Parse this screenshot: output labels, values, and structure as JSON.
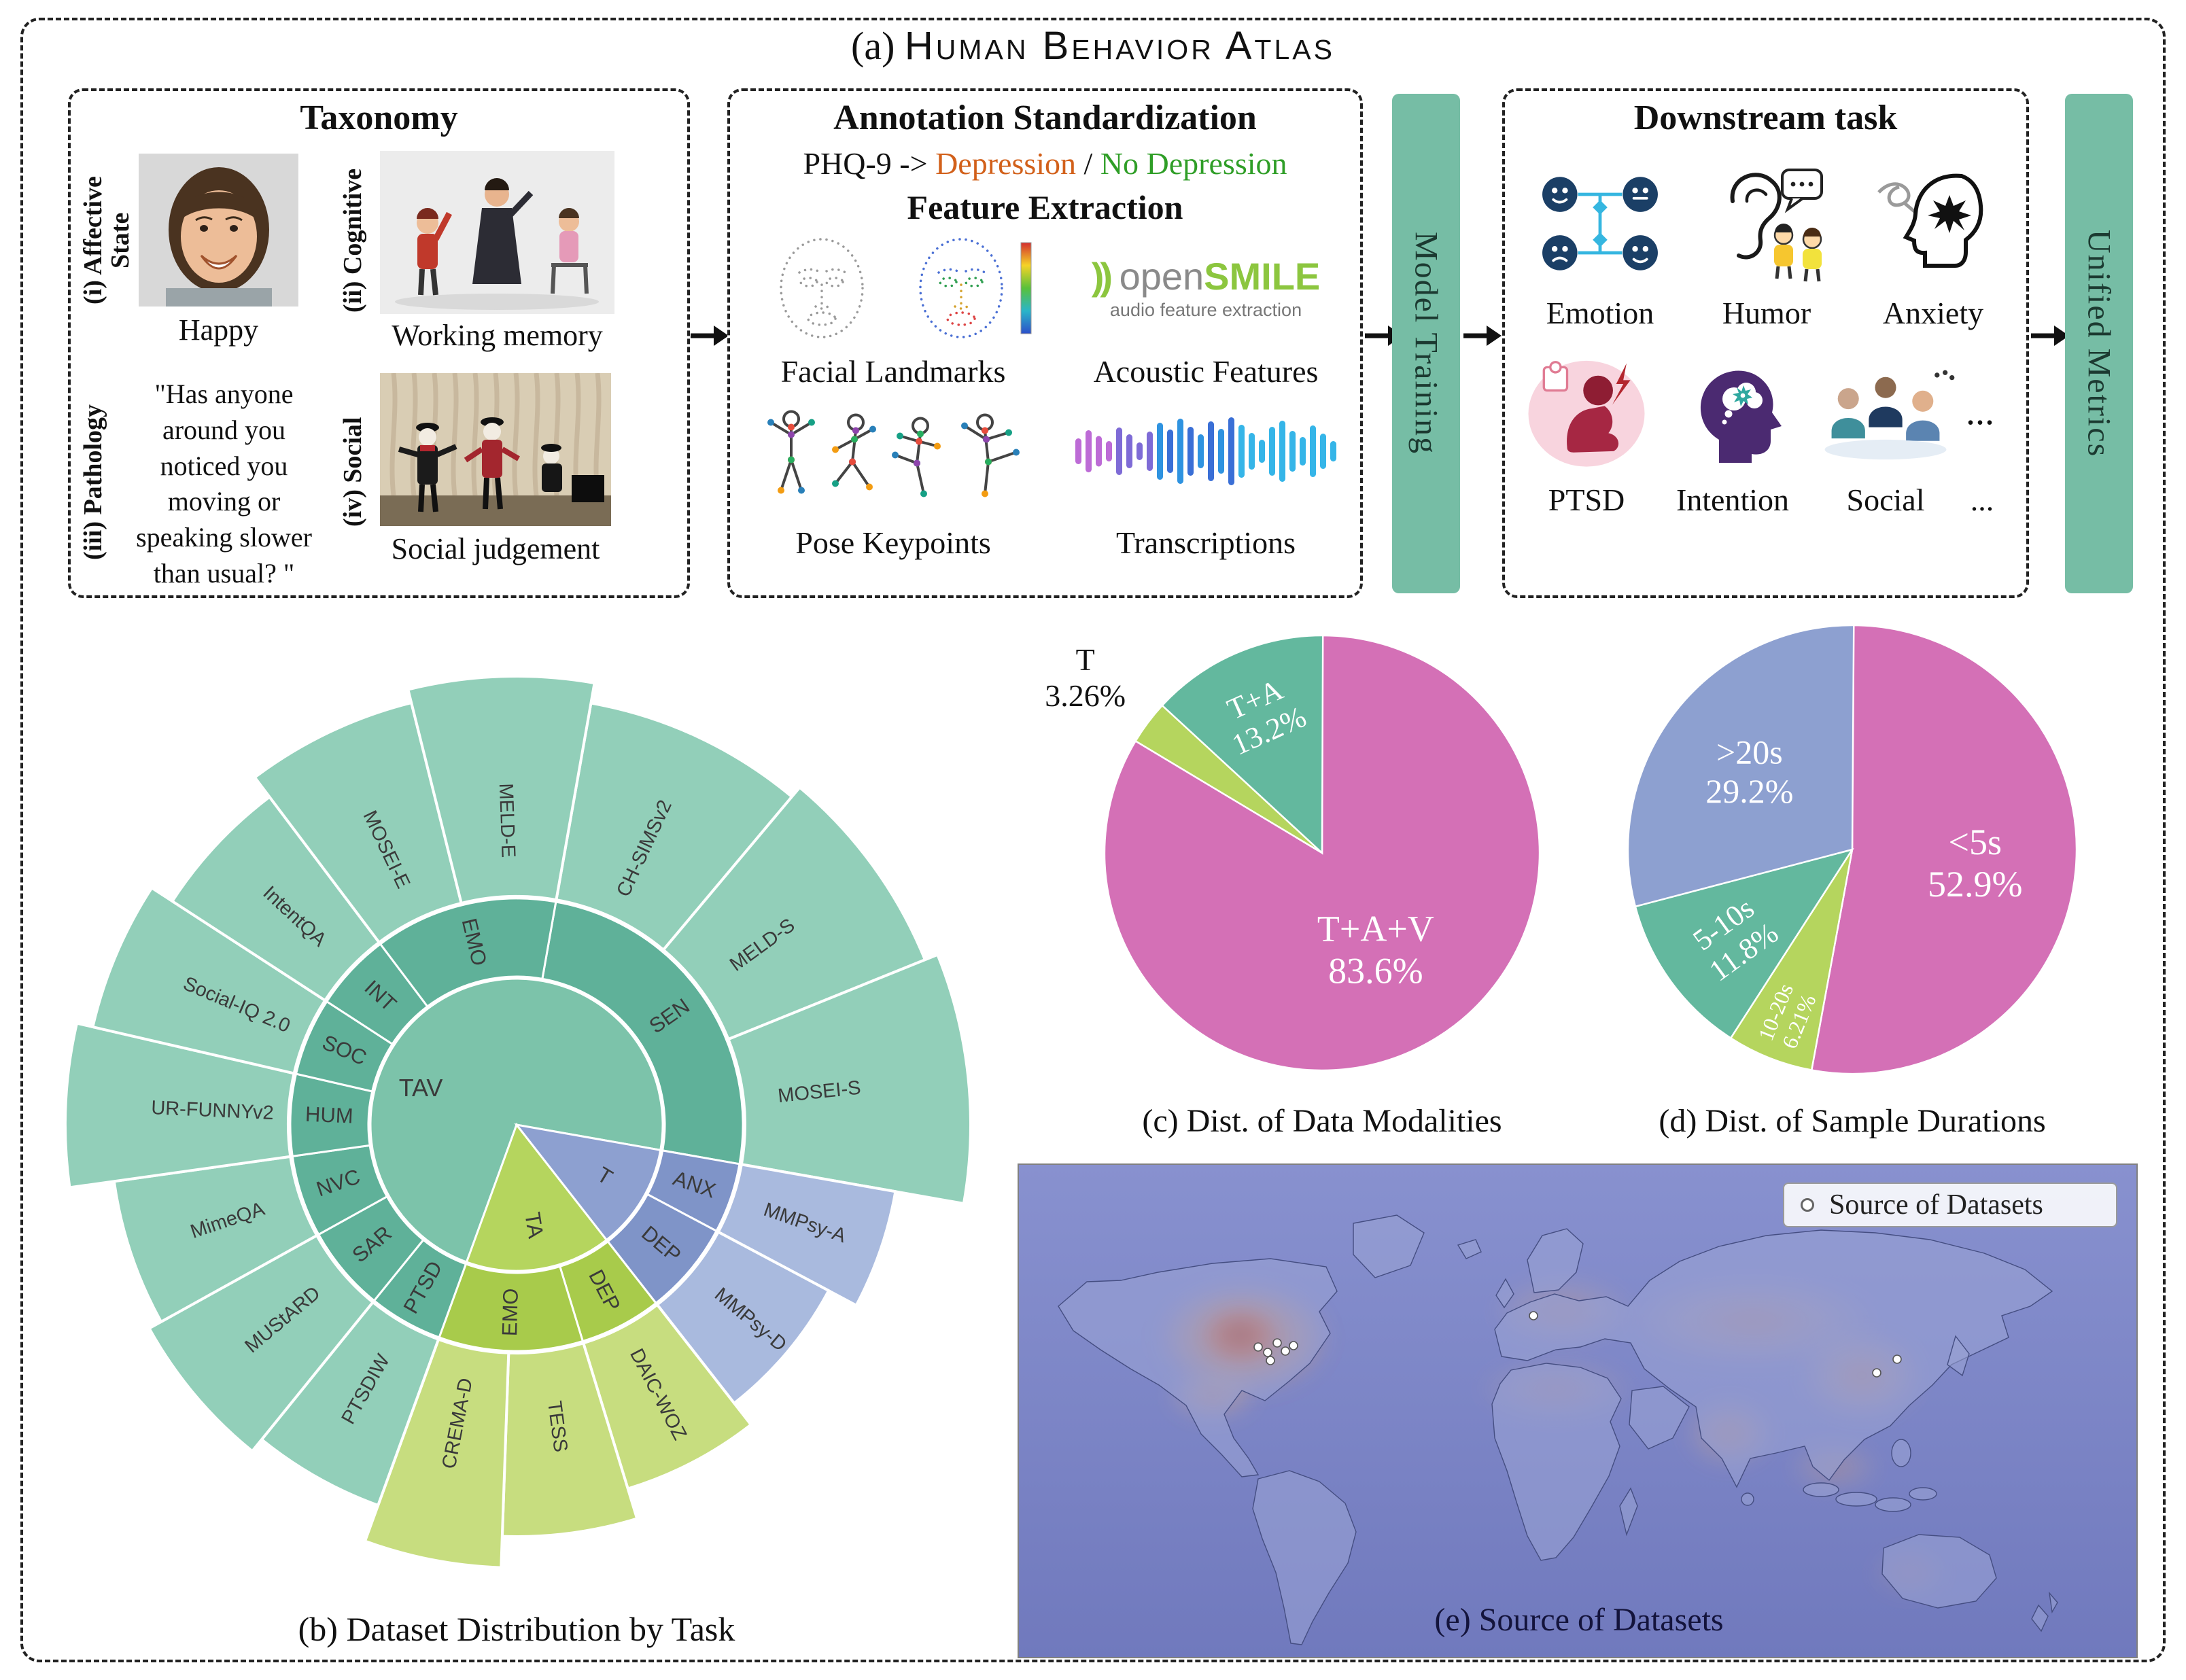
{
  "figure": {
    "title_prefix": "(a)",
    "title": "Human Behavior Atlas"
  },
  "taxonomy": {
    "title": "Taxonomy",
    "items": [
      {
        "label": "(i) Affective State",
        "caption": "Happy"
      },
      {
        "label": "(ii) Cognitive",
        "caption": "Working memory"
      },
      {
        "label": "(iii) Pathology",
        "quote": "\"Has anyone around you noticed you moving or speaking slower than usual? \""
      },
      {
        "label": "(iv) Social",
        "caption": "Social judgement"
      }
    ]
  },
  "annotation": {
    "title": "Annotation Standardization",
    "phq_prefix": "PHQ-9 ->",
    "phq_depression": "Depression",
    "phq_separator": "/",
    "phq_no_depression": "No Depression",
    "feature_title": "Feature Extraction",
    "features": [
      "Facial Landmarks",
      "Acoustic Features",
      "Pose Keypoints",
      "Transcriptions"
    ],
    "opensmile_mark": "))",
    "opensmile_open": "open",
    "opensmile_smile": "SMILE",
    "opensmile_subtitle": "audio feature extraction"
  },
  "model_training_label": "Model Training",
  "downstream": {
    "title": "Downstream task",
    "row1_labels": [
      "Emotion",
      "Humor",
      "Anxiety"
    ],
    "row2_labels": [
      "PTSD",
      "Intention",
      "Social",
      "..."
    ],
    "icon_row_ellipsis": "..."
  },
  "unified_metrics_label": "Unified Metrics",
  "captions": {
    "b": "(b) Dataset Distribution by Task",
    "c": "(c) Dist. of Data Modalities",
    "d": "(d) Dist. of Sample Durations",
    "e": "(e) Source of Datasets"
  },
  "map": {
    "legend": "Source of Datasets"
  },
  "chart_data": [
    {
      "type": "sunburst",
      "title": "(b) Dataset Distribution by Task",
      "angle_unit": "degrees clockwise from 12 o'clock",
      "levels": [
        {
          "ring": 1,
          "segments": [
            {
              "label": "TAV",
              "a0": 200,
              "a1": 460,
              "color": "#7cc3aa"
            },
            {
              "label": "TA",
              "a0": 142,
              "a1": 200,
              "color": "#b5d55e"
            },
            {
              "label": "T",
              "a0": 100,
              "a1": 142,
              "color": "#8da0d0"
            }
          ]
        },
        {
          "ring": 2,
          "segments": [
            {
              "label": "SEN",
              "a0": 10,
              "a1": 100,
              "color": "#5fb199"
            },
            {
              "label": "ANX",
              "a0": 100,
              "a1": 118,
              "color": "#7f94c8"
            },
            {
              "label": "DEP",
              "a0": 118,
              "a1": 142,
              "color": "#7f94c8"
            },
            {
              "label": "DEP",
              "a0": 142,
              "a1": 163,
              "color": "#a8cb4b"
            },
            {
              "label": "EMO",
              "a0": 163,
              "a1": 200,
              "color": "#a8cb4b"
            },
            {
              "label": "PTSD",
              "a0": 200,
              "a1": 219,
              "color": "#5fb199"
            },
            {
              "label": "SAR",
              "a0": 219,
              "a1": 241,
              "color": "#5fb199"
            },
            {
              "label": "NVC",
              "a0": 241,
              "a1": 262,
              "color": "#5fb199"
            },
            {
              "label": "HUM",
              "a0": 262,
              "a1": 283,
              "color": "#5fb199"
            },
            {
              "label": "SOC",
              "a0": 283,
              "a1": 303,
              "color": "#5fb199"
            },
            {
              "label": "INT",
              "a0": 303,
              "a1": 323,
              "color": "#5fb199"
            },
            {
              "label": "EMO",
              "a0": 323,
              "a1": 370,
              "color": "#5fb199"
            }
          ]
        },
        {
          "ring": 3,
          "segments": [
            {
              "label": "CH-SIMSv2",
              "a0": 10,
              "a1": 40,
              "outer": 630,
              "color": "#92cfb9"
            },
            {
              "label": "MELD-S",
              "a0": 40,
              "a1": 68,
              "outer": 648,
              "color": "#92cfb9"
            },
            {
              "label": "MOSEI-S",
              "a0": 68,
              "a1": 100,
              "outer": 668,
              "color": "#92cfb9"
            },
            {
              "label": "MMPsy-A",
              "a0": 100,
              "a1": 118,
              "outer": 566,
              "color": "#a9bade"
            },
            {
              "label": "MMPsy-D",
              "a0": 118,
              "a1": 142,
              "outer": 520,
              "color": "#a9bade"
            },
            {
              "label": "DAIC-WOZ",
              "a0": 142,
              "a1": 163,
              "outer": 560,
              "color": "#c7dd7f"
            },
            {
              "label": "TESS",
              "a0": 163,
              "a1": 182,
              "outer": 606,
              "color": "#c7dd7f"
            },
            {
              "label": "CREMA-D",
              "a0": 182,
              "a1": 200,
              "outer": 652,
              "color": "#c7dd7f"
            },
            {
              "label": "PTSDIW",
              "a0": 200,
              "a1": 219,
              "outer": 596,
              "color": "#92cfb9"
            },
            {
              "label": "MUStARD",
              "a0": 219,
              "a1": 241,
              "outer": 618,
              "color": "#92cfb9"
            },
            {
              "label": "MimeQA",
              "a0": 241,
              "a1": 262,
              "outer": 598,
              "color": "#92cfb9"
            },
            {
              "label": "UR-FUNNYv2",
              "a0": 262,
              "a1": 283,
              "outer": 664,
              "color": "#92cfb9"
            },
            {
              "label": "Social-IQ 2.0",
              "a0": 283,
              "a1": 303,
              "outer": 640,
              "color": "#92cfb9"
            },
            {
              "label": "IntentQA",
              "a0": 303,
              "a1": 323,
              "outer": 604,
              "color": "#92cfb9"
            },
            {
              "label": "MOSEI-E",
              "a0": 323,
              "a1": 346,
              "outer": 640,
              "color": "#92cfb9"
            },
            {
              "label": "MELD-E",
              "a0": 346,
              "a1": 370,
              "outer": 660,
              "color": "#92cfb9"
            }
          ]
        }
      ]
    },
    {
      "type": "pie",
      "title": "(c) Dist. of Data Modalities",
      "slices": [
        {
          "label": "T+A+V",
          "pct": 83.6,
          "pct_text": "83.6%",
          "color": "#d470b6",
          "label_color": "#ffffff",
          "inside": true
        },
        {
          "label": "T",
          "pct": 3.26,
          "pct_text": "3.26%",
          "color": "#b5d55e",
          "label_color": "#111111",
          "inside": false
        },
        {
          "label": "T+A",
          "pct": 13.2,
          "pct_text": "13.2%",
          "color": "#63b89e",
          "label_color": "#ffffff",
          "inside": true
        }
      ]
    },
    {
      "type": "pie",
      "title": "(d) Dist. of Sample Durations",
      "slices": [
        {
          "label": "<5s",
          "pct": 52.9,
          "pct_text": "52.9%",
          "color": "#d470b6",
          "label_color": "#ffffff",
          "inside": true
        },
        {
          "label": "10-20s",
          "pct": 6.21,
          "pct_text": "6.21%",
          "color": "#b5d55e",
          "label_color": "#ffffff",
          "inside": true
        },
        {
          "label": "5-10s",
          "pct": 11.8,
          "pct_text": "11.8%",
          "color": "#63b89e",
          "label_color": "#ffffff",
          "inside": true
        },
        {
          "label": ">20s",
          "pct": 29.2,
          "pct_text": "29.2%",
          "color": "#8da0d0",
          "label_color": "#ffffff",
          "inside": true
        }
      ]
    }
  ]
}
